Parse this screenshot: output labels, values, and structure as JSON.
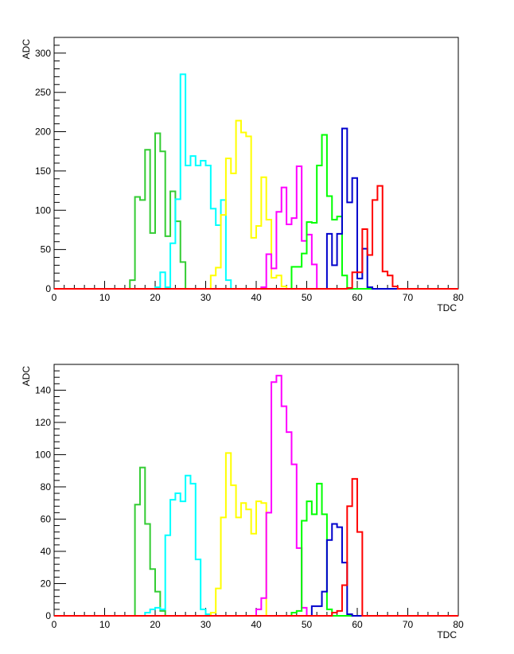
{
  "chart_data": [
    {
      "type": "histogram",
      "xlabel": "TDC",
      "ylabel": "ADC",
      "xlim": [
        0,
        80
      ],
      "ylim": [
        0,
        320
      ],
      "x_ticks": [
        0,
        10,
        20,
        30,
        40,
        50,
        60,
        70,
        80
      ],
      "y_ticks": [
        0,
        50,
        100,
        150,
        200,
        250,
        300
      ],
      "bin_width": 1,
      "grid": false,
      "series": [
        {
          "color": "#33cc33",
          "bins": [
            [
              15,
              11
            ],
            [
              16,
              117
            ],
            [
              17,
              113
            ],
            [
              18,
              177
            ],
            [
              19,
              71
            ],
            [
              20,
              198
            ],
            [
              21,
              175
            ],
            [
              22,
              67
            ],
            [
              23,
              124
            ],
            [
              24,
              86
            ],
            [
              25,
              34
            ]
          ]
        },
        {
          "color": "#00ffff",
          "bins": [
            [
              20,
              2
            ],
            [
              21,
              21
            ],
            [
              22,
              2
            ],
            [
              23,
              58
            ],
            [
              24,
              114
            ],
            [
              25,
              273
            ],
            [
              26,
              157
            ],
            [
              27,
              169
            ],
            [
              28,
              157
            ],
            [
              29,
              163
            ],
            [
              30,
              157
            ],
            [
              31,
              102
            ],
            [
              32,
              81
            ],
            [
              33,
              113
            ],
            [
              34,
              11
            ]
          ]
        },
        {
          "color": "#ffff00",
          "bins": [
            [
              31,
              17
            ],
            [
              32,
              27
            ],
            [
              33,
              94
            ],
            [
              34,
              166
            ],
            [
              35,
              147
            ],
            [
              36,
              214
            ],
            [
              37,
              199
            ],
            [
              38,
              194
            ],
            [
              39,
              65
            ],
            [
              40,
              80
            ],
            [
              41,
              142
            ],
            [
              42,
              88
            ],
            [
              43,
              14
            ],
            [
              44,
              17
            ],
            [
              45,
              3
            ]
          ]
        },
        {
          "color": "#ff00ff",
          "bins": [
            [
              41,
              2
            ],
            [
              42,
              44
            ],
            [
              43,
              26
            ],
            [
              44,
              98
            ],
            [
              45,
              129
            ],
            [
              46,
              82
            ],
            [
              47,
              90
            ],
            [
              48,
              156
            ],
            [
              49,
              61
            ],
            [
              50,
              69
            ],
            [
              51,
              31
            ]
          ]
        },
        {
          "color": "#00ff00",
          "bins": [
            [
              47,
              28
            ],
            [
              48,
              28
            ],
            [
              49,
              45
            ],
            [
              50,
              85
            ],
            [
              51,
              84
            ],
            [
              52,
              157
            ],
            [
              53,
              196
            ],
            [
              54,
              118
            ],
            [
              55,
              88
            ],
            [
              56,
              92
            ],
            [
              57,
              17
            ]
          ]
        },
        {
          "color": "#0000cc",
          "bins": [
            [
              54,
              70
            ],
            [
              55,
              30
            ],
            [
              56,
              70
            ],
            [
              57,
              204
            ],
            [
              58,
              110
            ],
            [
              59,
              141
            ],
            [
              60,
              13
            ],
            [
              61,
              51
            ],
            [
              62,
              2
            ]
          ]
        },
        {
          "color": "#ff0000",
          "bins": [
            [
              58,
              1
            ],
            [
              59,
              21
            ],
            [
              60,
              21
            ],
            [
              61,
              76
            ],
            [
              62,
              43
            ],
            [
              63,
              113
            ],
            [
              64,
              131
            ],
            [
              65,
              22
            ],
            [
              66,
              17
            ],
            [
              67,
              3
            ]
          ]
        }
      ]
    },
    {
      "type": "histogram",
      "xlabel": "TDC",
      "ylabel": "ADC",
      "xlim": [
        0,
        80
      ],
      "ylim": [
        0,
        156
      ],
      "x_ticks": [
        0,
        10,
        20,
        30,
        40,
        50,
        60,
        70,
        80
      ],
      "y_ticks": [
        0,
        20,
        40,
        60,
        80,
        100,
        120,
        140
      ],
      "bin_width": 1,
      "grid": false,
      "series": [
        {
          "color": "#33cc33",
          "bins": [
            [
              16,
              69
            ],
            [
              17,
              92
            ],
            [
              18,
              57
            ],
            [
              19,
              29
            ],
            [
              20,
              15
            ],
            [
              21,
              3
            ]
          ]
        },
        {
          "color": "#00ffff",
          "bins": [
            [
              18,
              2
            ],
            [
              19,
              4
            ],
            [
              20,
              5
            ],
            [
              21,
              4
            ],
            [
              22,
              50
            ],
            [
              23,
              72
            ],
            [
              24,
              76
            ],
            [
              25,
              71
            ],
            [
              26,
              87
            ],
            [
              27,
              82
            ],
            [
              28,
              35
            ],
            [
              29,
              4
            ],
            [
              30,
              1
            ]
          ]
        },
        {
          "color": "#ffff00",
          "bins": [
            [
              31,
              2
            ],
            [
              32,
              17
            ],
            [
              33,
              61
            ],
            [
              34,
              101
            ],
            [
              35,
              81
            ],
            [
              36,
              61
            ],
            [
              37,
              70
            ],
            [
              38,
              66
            ],
            [
              39,
              51
            ],
            [
              40,
              71
            ],
            [
              41,
              70
            ]
          ]
        },
        {
          "color": "#ff00ff",
          "bins": [
            [
              40,
              4
            ],
            [
              41,
              11
            ],
            [
              42,
              64
            ],
            [
              43,
              145
            ],
            [
              44,
              149
            ],
            [
              45,
              130
            ],
            [
              46,
              114
            ],
            [
              47,
              94
            ],
            [
              48,
              42
            ],
            [
              49,
              5
            ]
          ]
        },
        {
          "color": "#00ff00",
          "bins": [
            [
              47,
              2
            ],
            [
              48,
              3
            ],
            [
              49,
              59
            ],
            [
              50,
              71
            ],
            [
              51,
              63
            ],
            [
              52,
              82
            ],
            [
              53,
              63
            ],
            [
              54,
              4
            ]
          ]
        },
        {
          "color": "#0000cc",
          "bins": [
            [
              51,
              6
            ],
            [
              52,
              6
            ],
            [
              53,
              15
            ],
            [
              54,
              47
            ],
            [
              55,
              57
            ],
            [
              56,
              55
            ],
            [
              57,
              33
            ],
            [
              58,
              1
            ]
          ]
        },
        {
          "color": "#ff0000",
          "bins": [
            [
              55,
              2
            ],
            [
              56,
              3
            ],
            [
              57,
              19
            ],
            [
              58,
              68
            ],
            [
              59,
              85
            ],
            [
              60,
              52
            ]
          ]
        }
      ]
    }
  ]
}
